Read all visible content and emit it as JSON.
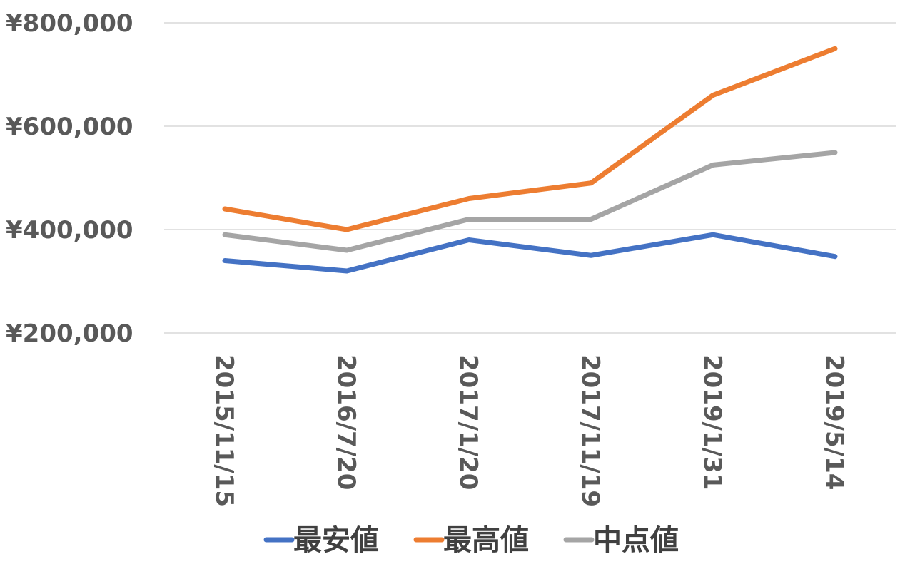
{
  "chart_data": {
    "type": "line",
    "title": "",
    "xlabel": "",
    "ylabel": "",
    "categories": [
      "2015/11/15",
      "2016/7/20",
      "2017/1/20",
      "2017/11/19",
      "2019/1/31",
      "2019/5/14"
    ],
    "series": [
      {
        "name": "最安値",
        "color": "#4472c4",
        "values": [
          340000,
          320000,
          380000,
          350000,
          390000,
          348000
        ]
      },
      {
        "name": "最高値",
        "color": "#ed7d31",
        "values": [
          440000,
          400000,
          460000,
          490000,
          660000,
          750000
        ]
      },
      {
        "name": "中点値",
        "color": "#a5a5a5",
        "values": [
          390000,
          360000,
          420000,
          420000,
          525000,
          549000
        ]
      }
    ],
    "ylim": [
      200000,
      800000
    ],
    "yticks": [
      200000,
      400000,
      600000,
      800000
    ],
    "ytick_labels": [
      "¥200,000",
      "¥400,000",
      "¥600,000",
      "¥800,000"
    ],
    "grid": true,
    "legend": "bottom"
  }
}
